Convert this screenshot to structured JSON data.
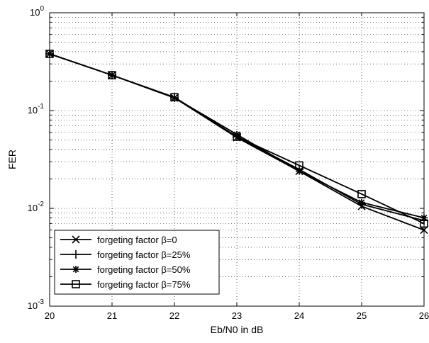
{
  "chart_data": {
    "type": "line",
    "xlabel": "Eb/N0 in dB",
    "ylabel": "FER",
    "x": [
      20,
      21,
      22,
      23,
      24,
      25,
      26
    ],
    "xlim": [
      20,
      26
    ],
    "ylim": [
      0.001,
      1
    ],
    "yscale": "log",
    "xticks": [
      "20",
      "21",
      "22",
      "23",
      "24",
      "25",
      "26"
    ],
    "yticks": [
      {
        "value": 1,
        "base": "10",
        "exp": "0"
      },
      {
        "value": 0.1,
        "base": "10",
        "exp": "-1"
      },
      {
        "value": 0.01,
        "base": "10",
        "exp": "-2"
      },
      {
        "value": 0.001,
        "base": "10",
        "exp": "-3"
      }
    ],
    "grid": true,
    "legend_position": "bottom-left",
    "line_color": "#000000",
    "series": [
      {
        "name": "forgeting factor β=0",
        "marker": "x",
        "values": [
          0.38,
          0.23,
          0.135,
          0.053,
          0.024,
          0.0105,
          0.006
        ]
      },
      {
        "name": "forgeting factor β=25%",
        "marker": "plus",
        "values": [
          0.38,
          0.23,
          0.135,
          0.054,
          0.025,
          0.011,
          0.0075
        ]
      },
      {
        "name": "forgeting factor β=50%",
        "marker": "star",
        "values": [
          0.38,
          0.23,
          0.135,
          0.057,
          0.024,
          0.0115,
          0.008
        ]
      },
      {
        "name": "forgeting factor β=75%",
        "marker": "square",
        "values": [
          0.38,
          0.23,
          0.137,
          0.054,
          0.0275,
          0.014,
          0.007
        ]
      }
    ]
  }
}
